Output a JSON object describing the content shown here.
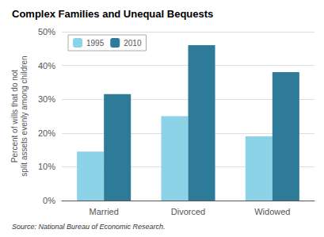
{
  "chart_data": {
    "type": "bar",
    "title": "Complex Families and Unequal Bequests",
    "source": "Source: National Bureau of Economic Research.",
    "ylabel": "Percent of wills that do not\nsplit assets evenly among children",
    "categories": [
      "Married",
      "Divorced",
      "Widowed"
    ],
    "series": [
      {
        "name": "1995",
        "color": "#8dd3e8",
        "values": [
          14.5,
          25.0,
          19.0
        ]
      },
      {
        "name": "2010",
        "color": "#2e7a99",
        "values": [
          31.5,
          46.0,
          38.0
        ]
      }
    ],
    "ylim": [
      0,
      50
    ],
    "yticks": [
      {
        "value": 0,
        "label": "0%"
      },
      {
        "value": 10,
        "label": "10%"
      },
      {
        "value": 20,
        "label": "20%"
      },
      {
        "value": 30,
        "label": "30%"
      },
      {
        "value": 40,
        "label": "40%"
      },
      {
        "value": 50,
        "label": "50%"
      }
    ],
    "grid": true,
    "legend": "upper left"
  }
}
